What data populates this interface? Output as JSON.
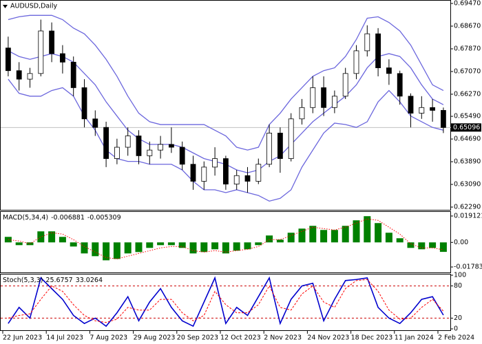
{
  "chart_data": [
    {
      "type": "candlestick",
      "title": "AUDUSD,Daily",
      "categories": [
        "22 Jun 2023",
        null,
        null,
        null,
        "14 Jul 2023",
        null,
        null,
        null,
        "7 Aug 2023",
        null,
        null,
        null,
        "29 Aug 2023",
        null,
        null,
        null,
        "20 Sep 2023",
        null,
        null,
        null,
        "12 Oct 2023",
        null,
        null,
        null,
        "2 Nov 2023",
        null,
        null,
        null,
        "24 Nov 2023",
        null,
        null,
        null,
        "18 Dec 2023",
        null,
        null,
        null,
        "11 Jan 2024",
        null,
        null,
        null,
        "2 Feb 2024"
      ],
      "open": [
        0.679,
        0.671,
        0.668,
        0.67,
        0.685,
        0.677,
        0.674,
        0.665,
        0.654,
        0.651,
        0.64,
        0.644,
        0.648,
        0.641,
        0.643,
        0.645,
        0.644,
        0.638,
        0.632,
        0.637,
        0.64,
        0.631,
        0.634,
        0.632,
        0.638,
        0.649,
        0.64,
        0.654,
        0.658,
        0.665,
        0.658,
        0.662,
        0.67,
        0.678,
        0.684,
        0.672,
        0.67,
        0.662,
        0.656,
        0.658,
        0.657
      ],
      "high": [
        0.683,
        0.674,
        0.672,
        0.689,
        0.688,
        0.68,
        0.676,
        0.668,
        0.657,
        0.653,
        0.647,
        0.651,
        0.65,
        0.646,
        0.648,
        0.651,
        0.646,
        0.641,
        0.639,
        0.644,
        0.641,
        0.636,
        0.637,
        0.64,
        0.652,
        0.651,
        0.656,
        0.661,
        0.669,
        0.669,
        0.664,
        0.672,
        0.68,
        0.687,
        0.686,
        0.675,
        0.671,
        0.663,
        0.662,
        0.661,
        0.658
      ],
      "low": [
        0.669,
        0.664,
        0.665,
        0.669,
        0.674,
        0.67,
        0.662,
        0.651,
        0.648,
        0.637,
        0.638,
        0.641,
        0.638,
        0.638,
        0.64,
        0.642,
        0.636,
        0.629,
        0.629,
        0.634,
        0.629,
        0.629,
        0.628,
        0.631,
        0.637,
        0.635,
        0.639,
        0.652,
        0.656,
        0.655,
        0.656,
        0.661,
        0.668,
        0.676,
        0.669,
        0.666,
        0.659,
        0.651,
        0.654,
        0.653,
        0.649
      ],
      "close": [
        0.671,
        0.668,
        0.67,
        0.685,
        0.677,
        0.674,
        0.665,
        0.654,
        0.651,
        0.64,
        0.644,
        0.648,
        0.641,
        0.643,
        0.645,
        0.644,
        0.638,
        0.632,
        0.637,
        0.64,
        0.631,
        0.634,
        0.632,
        0.638,
        0.649,
        0.64,
        0.654,
        0.658,
        0.665,
        0.658,
        0.662,
        0.67,
        0.678,
        0.684,
        0.672,
        0.67,
        0.662,
        0.656,
        0.658,
        0.657,
        0.65096
      ],
      "up_color": "#ffffff",
      "down_color": "#000000",
      "wick_color": "#000000",
      "bands": [
        {
          "color": "#6b66dd",
          "values": [
            0.689,
            0.69,
            0.6905,
            0.6905,
            0.6905,
            0.689,
            0.686,
            0.684,
            0.68,
            0.675,
            0.669,
            0.662,
            0.656,
            0.653,
            0.652,
            0.652,
            0.652,
            0.652,
            0.652,
            0.65,
            0.648,
            0.644,
            0.643,
            0.644,
            0.652,
            0.656,
            0.661,
            0.665,
            0.669,
            0.671,
            0.672,
            0.676,
            0.682,
            0.6895,
            0.69,
            0.688,
            0.685,
            0.68,
            0.673,
            0.666,
            0.664
          ]
        },
        {
          "color": "#6b66dd",
          "values": [
            0.678,
            0.676,
            0.675,
            0.676,
            0.677,
            0.676,
            0.674,
            0.67,
            0.666,
            0.66,
            0.655,
            0.65,
            0.647,
            0.645,
            0.645,
            0.645,
            0.644,
            0.642,
            0.64,
            0.639,
            0.638,
            0.636,
            0.635,
            0.636,
            0.639,
            0.641,
            0.645,
            0.649,
            0.653,
            0.656,
            0.659,
            0.662,
            0.666,
            0.672,
            0.676,
            0.677,
            0.676,
            0.672,
            0.666,
            0.661,
            0.659
          ]
        },
        {
          "color": "#6b66dd",
          "values": [
            0.668,
            0.663,
            0.662,
            0.662,
            0.664,
            0.665,
            0.662,
            0.655,
            0.65,
            0.643,
            0.64,
            0.639,
            0.639,
            0.638,
            0.638,
            0.638,
            0.636,
            0.632,
            0.629,
            0.629,
            0.628,
            0.629,
            0.628,
            0.627,
            0.625,
            0.626,
            0.629,
            0.637,
            0.643,
            0.649,
            0.6525,
            0.652,
            0.651,
            0.653,
            0.66,
            0.664,
            0.66,
            0.655,
            0.653,
            0.651,
            0.65
          ]
        }
      ],
      "price_line_color": "#c0c0c0",
      "ylim": [
        0.62193,
        0.69543
      ],
      "yticks": [
        {
          "value": 0.6947,
          "label": "0.69470"
        },
        {
          "value": 0.6867,
          "label": "0.68670"
        },
        {
          "value": 0.6787,
          "label": "0.67870"
        },
        {
          "value": 0.6707,
          "label": "0.67070"
        },
        {
          "value": 0.6627,
          "label": "0.66270"
        },
        {
          "value": 0.6549,
          "label": "0.65490"
        },
        {
          "value": 0.6469,
          "label": "0.64690"
        },
        {
          "value": 0.6389,
          "label": "0.63890"
        },
        {
          "value": 0.6309,
          "label": "0.63090"
        },
        {
          "value": 0.6229,
          "label": "0.62290"
        }
      ]
    },
    {
      "type": "macd",
      "title": "MACD(5,34,4)",
      "series": [
        {
          "color": "#008000",
          "style": "histogram",
          "values": [
            0.004,
            -0.002,
            -0.002,
            0.008,
            0.008,
            0.004,
            -0.003,
            -0.008,
            -0.01,
            -0.013,
            -0.012,
            -0.008,
            -0.007,
            -0.004,
            -0.002,
            -0.002,
            -0.004,
            -0.008,
            -0.007,
            -0.005,
            -0.008,
            -0.006,
            -0.005,
            -0.002,
            0.005,
            0.002,
            0.007,
            0.01,
            0.012,
            0.009,
            0.009,
            0.012,
            0.016,
            0.019,
            0.014,
            0.007,
            0.003,
            -0.004,
            -0.005,
            -0.004,
            -0.006881
          ]
        },
        {
          "color": "#ff0000",
          "style": "dotted",
          "values": [
            0.002,
            0.001,
            -0.001,
            0.004,
            0.007,
            0.006,
            0.002,
            -0.003,
            -0.007,
            -0.011,
            -0.012,
            -0.01,
            -0.008,
            -0.006,
            -0.004,
            -0.003,
            -0.003,
            -0.006,
            -0.007,
            -0.006,
            -0.007,
            -0.006,
            -0.005,
            -0.003,
            0.002,
            0.002,
            0.005,
            0.008,
            0.011,
            0.01,
            0.009,
            0.011,
            0.014,
            0.017,
            0.016,
            0.011,
            0.006,
            -0.001,
            -0.004,
            -0.004,
            -0.005309
          ]
        }
      ],
      "ylim": [
        -0.0218,
        0.0221
      ],
      "yticks": [
        0.019121,
        {
          "value": 0,
          "label": "0.00"
        },
        -0.017832
      ]
    },
    {
      "type": "stochastic",
      "title": "Stoch(5,3,3)",
      "series": [
        {
          "color": "#0000cd",
          "style": "solid",
          "values": [
            10,
            40,
            20,
            95,
            75,
            55,
            25,
            10,
            20,
            5,
            30,
            60,
            15,
            50,
            75,
            40,
            15,
            5,
            50,
            95,
            10,
            40,
            25,
            60,
            95,
            10,
            55,
            80,
            85,
            15,
            55,
            90,
            92,
            95,
            40,
            20,
            10,
            30,
            55,
            60,
            25.6757
          ]
        },
        {
          "color": "#ff0000",
          "style": "dashed",
          "values": [
            20,
            25,
            28,
            55,
            80,
            70,
            45,
            25,
            15,
            12,
            18,
            40,
            35,
            35,
            55,
            55,
            30,
            15,
            25,
            70,
            45,
            30,
            30,
            45,
            80,
            40,
            35,
            65,
            80,
            50,
            40,
            75,
            90,
            92,
            70,
            35,
            18,
            20,
            40,
            55,
            33.0264
          ]
        }
      ],
      "levels": [
        80,
        20
      ],
      "level_color": "#cc0000",
      "ylim": [
        0,
        100
      ],
      "yticks": [
        100,
        80,
        20,
        0
      ]
    }
  ]
}
